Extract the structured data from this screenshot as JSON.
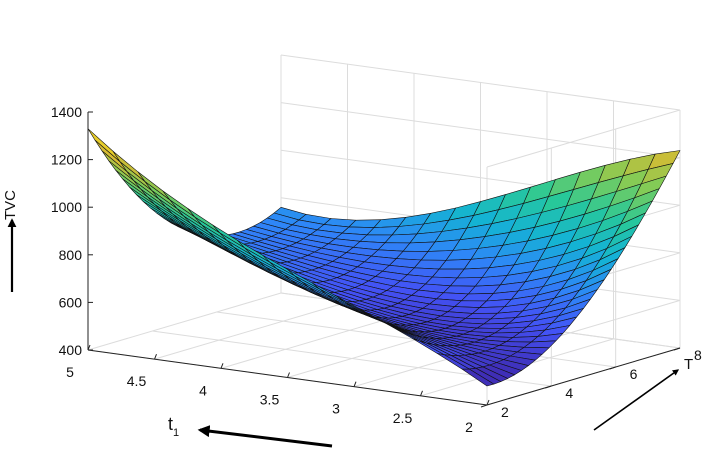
{
  "chart_data": {
    "type": "surface",
    "title": "",
    "zlabel": "TVC",
    "ylabel": "T",
    "xlabel_main": "t",
    "xlabel_sub": "1",
    "zticks": [
      "400",
      "600",
      "800",
      "1000",
      "1200",
      "1400"
    ],
    "zlim": [
      400,
      1400
    ],
    "x_ticks": [
      "5",
      "4.5",
      "4",
      "3.5",
      "3",
      "2.5",
      "2"
    ],
    "xlim": [
      2,
      5
    ],
    "y_ticks": [
      "2",
      "4",
      "6",
      "8"
    ],
    "ylim": [
      2,
      8
    ],
    "grid": true,
    "colormap": "parula",
    "colormap_stops": [
      "#3e26a8",
      "#4352f5",
      "#2e87f7",
      "#14b3d4",
      "#27c89a",
      "#7fcc58",
      "#d6bb33",
      "#f9e21c"
    ],
    "surface_samples": {
      "note_axes": "rows = t1 values, columns = T values, cells = TVC",
      "t1": [
        5,
        4,
        3,
        2
      ],
      "T": [
        2,
        4,
        6,
        8
      ],
      "TVC": [
        [
          1330,
          910,
          720,
          760
        ],
        [
          980,
          690,
          620,
          800
        ],
        [
          740,
          560,
          620,
          1020
        ],
        [
          480,
          570,
          840,
          1230
        ]
      ]
    }
  }
}
